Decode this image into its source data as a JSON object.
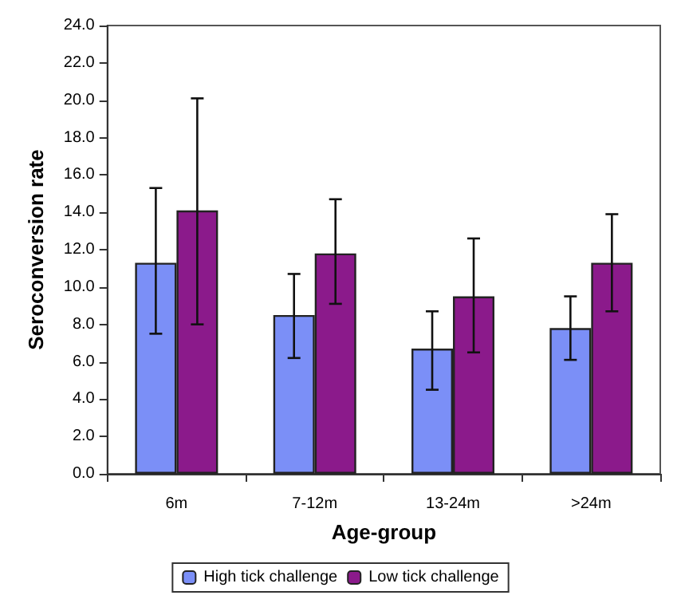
{
  "chart_data": {
    "type": "bar",
    "xlabel": "Age-group",
    "ylabel": "Seroconversion rate",
    "categories": [
      "6m",
      "7-12m",
      "13-24m",
      ">24m"
    ],
    "series": [
      {
        "name": "High tick challenge",
        "color": "#7b8ff7",
        "values": [
          11.3,
          8.5,
          6.7,
          7.8
        ],
        "errors": [
          [
            7.5,
            15.3
          ],
          [
            6.2,
            10.7
          ],
          [
            4.5,
            8.7
          ],
          [
            6.1,
            9.5
          ]
        ]
      },
      {
        "name": "Low tick challenge",
        "color": "#8b1a8b",
        "values": [
          14.1,
          11.8,
          9.5,
          11.3
        ],
        "errors": [
          [
            8.0,
            20.1
          ],
          [
            9.1,
            14.7
          ],
          [
            6.5,
            12.6
          ],
          [
            8.7,
            13.9
          ]
        ]
      }
    ],
    "ylim": [
      0,
      24
    ],
    "yticks": [
      {
        "value": 0,
        "label": "0.0"
      },
      {
        "value": 2,
        "label": "2.0"
      },
      {
        "value": 4,
        "label": "4.0"
      },
      {
        "value": 6,
        "label": "6.0"
      },
      {
        "value": 8,
        "label": "8.0"
      },
      {
        "value": 10,
        "label": "10.0"
      },
      {
        "value": 12,
        "label": "12.0"
      },
      {
        "value": 14,
        "label": "14.0"
      },
      {
        "value": 16,
        "label": "16.0"
      },
      {
        "value": 18,
        "label": "18.0"
      },
      {
        "value": 20,
        "label": "20.0"
      },
      {
        "value": 22,
        "label": "22.0"
      },
      {
        "value": 24,
        "label": "24.0"
      }
    ],
    "grid": false,
    "legend": "bottom"
  }
}
